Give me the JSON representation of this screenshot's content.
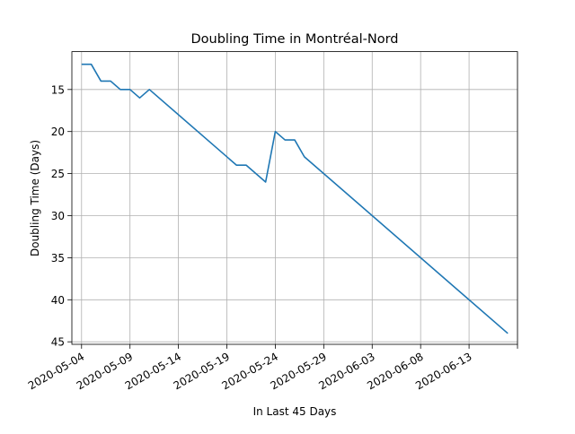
{
  "chart_data": {
    "type": "line",
    "title": "Doubling Time in  Montréal-Nord",
    "xlabel": "In Last 45 Days",
    "ylabel": "Doubling Time (Days)",
    "y_inverted": true,
    "ylim": [
      45.3,
      10.5
    ],
    "xlim": [
      "2020-05-03",
      "2020-06-18"
    ],
    "grid": true,
    "x_ticks": [
      "2020-05-04",
      "2020-05-09",
      "2020-05-14",
      "2020-05-19",
      "2020-05-24",
      "2020-05-29",
      "2020-06-03",
      "2020-06-08",
      "2020-06-13",
      ""
    ],
    "y_ticks": [
      15,
      20,
      25,
      30,
      35,
      40,
      45
    ],
    "series": [
      {
        "color": "#1f77b4",
        "x": [
          "2020-05-04",
          "2020-05-05",
          "2020-05-06",
          "2020-05-07",
          "2020-05-08",
          "2020-05-09",
          "2020-05-10",
          "2020-05-11",
          "2020-05-20",
          "2020-05-21",
          "2020-05-23",
          "2020-05-24",
          "2020-05-25",
          "2020-05-26",
          "2020-05-27",
          "2020-06-17"
        ],
        "y": [
          12,
          12,
          14,
          14,
          15,
          15,
          16,
          15,
          24,
          24,
          26,
          20,
          21,
          21,
          23,
          44
        ]
      }
    ]
  }
}
